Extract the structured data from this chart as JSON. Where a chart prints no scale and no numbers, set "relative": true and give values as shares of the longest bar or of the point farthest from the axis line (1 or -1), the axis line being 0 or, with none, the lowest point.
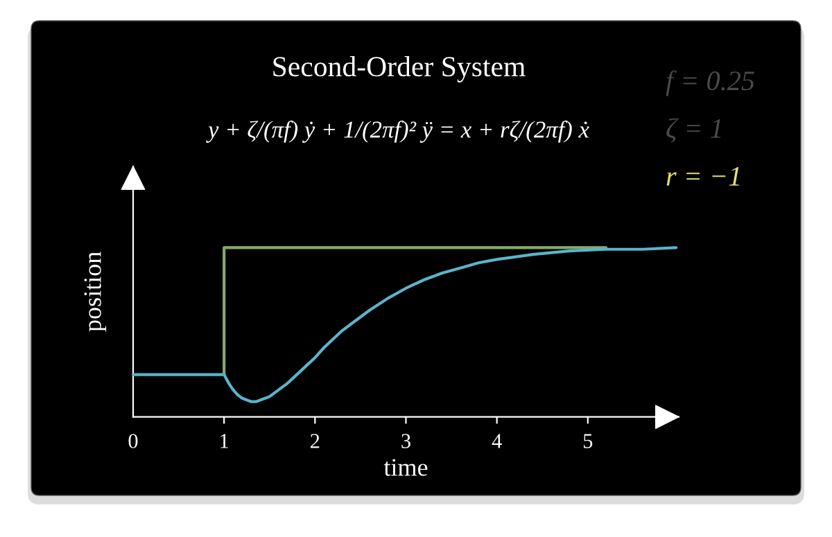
{
  "chart_data": {
    "type": "line",
    "title": "Second-Order System",
    "subtitle": "y + ζ/(πf) ẏ + 1/(2πf)² ÿ = x + rζ/(2πf) ẋ",
    "xlabel": "time",
    "ylabel": "position",
    "annotations": [
      "f = 0.25",
      "ζ = 1",
      "r = −1"
    ],
    "relative": true,
    "xlim": [
      0,
      6
    ],
    "xticks": [
      0,
      1,
      2,
      3,
      4,
      5
    ],
    "tick_labels": "x",
    "line_style": "solid",
    "series": [
      {
        "color": "#86ab6a",
        "x": [
          1,
          1,
          1,
          1.5,
          2,
          2.5,
          3,
          3.5,
          4,
          4.5,
          5,
          5.2
        ],
        "values": [
          0.25,
          0.6,
          1,
          1,
          1,
          1,
          1,
          1,
          1,
          1,
          1,
          1
        ]
      },
      {
        "color": "#5ab4cc",
        "x": [
          0,
          1,
          1.05,
          1.1,
          1.15,
          1.2,
          1.25,
          1.3,
          1.35,
          1.4,
          1.5,
          1.6,
          1.7,
          1.8,
          1.9,
          2.0,
          2.1,
          2.2,
          2.3,
          2.4,
          2.6,
          2.8,
          3.0,
          3.2,
          3.4,
          3.6,
          3.8,
          4.0,
          4.4,
          4.8,
          5.2,
          5.6,
          5.97
        ],
        "values": [
          0.25,
          0.25,
          0.2,
          0.16,
          0.13,
          0.11,
          0.1,
          0.09,
          0.09,
          0.1,
          0.12,
          0.16,
          0.2,
          0.25,
          0.3,
          0.35,
          0.41,
          0.46,
          0.51,
          0.55,
          0.63,
          0.7,
          0.76,
          0.81,
          0.85,
          0.88,
          0.91,
          0.93,
          0.96,
          0.98,
          0.99,
          0.99,
          1.0
        ]
      }
    ]
  }
}
